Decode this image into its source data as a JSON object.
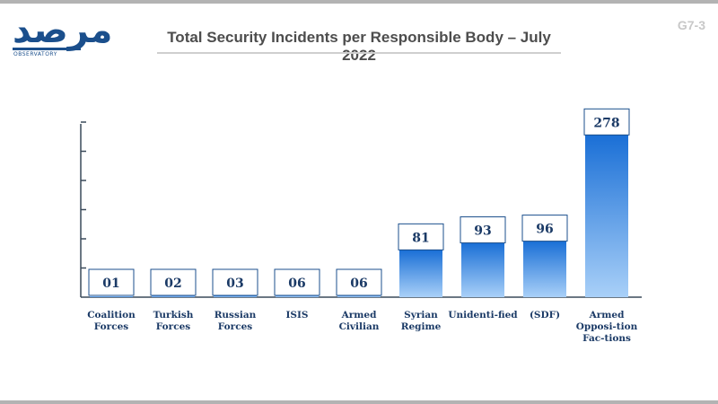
{
  "header": {
    "title": "Total Security Incidents per Responsible Body – July 2022",
    "page_code": "G7-3",
    "logo": {
      "arabic": "مرصد",
      "english": "OBSERVATORY"
    }
  },
  "chart_data": {
    "type": "bar",
    "title": "Total Security Incidents per Responsible Body – July 2022",
    "categories": [
      "Coalition Forces",
      "Turkish Forces",
      "Russian Forces",
      "ISIS",
      "Armed Civilian",
      "Syrian Regime",
      "Unidenti-fied",
      "(SDF)",
      "Armed Opposi-tion Fac-tions"
    ],
    "values": [
      1,
      2,
      3,
      6,
      6,
      81,
      93,
      96,
      278
    ],
    "value_labels": [
      "01",
      "02",
      "03",
      "06",
      "06",
      "81",
      "93",
      "96",
      "278"
    ],
    "ylim": [
      0,
      300
    ],
    "xlabel": "",
    "ylabel": "",
    "grid": false,
    "colors": {
      "bar_top": "#1a6fd6",
      "bar_bottom": "#a9d0f8",
      "label_border": "#1b4f8c",
      "axis": "#3a4a5a"
    }
  }
}
